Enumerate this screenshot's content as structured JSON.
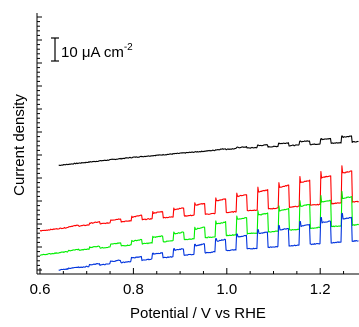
{
  "chart_data": {
    "type": "line",
    "title": "",
    "xlabel": "Potential / V vs RHE",
    "ylabel": "Current density",
    "xlim": [
      0.6,
      1.3
    ],
    "x_ticks": [
      0.6,
      0.8,
      1.0,
      1.2
    ],
    "x_tick_labels": [
      "0.6",
      "0.8",
      "1.0",
      "1.2"
    ],
    "y_scale": "arbitrary (stacked traces, no values printed)",
    "scale_bar": {
      "text": "10 μA cm",
      "superscript": "-2",
      "height_uA_cm2": 10
    },
    "light_chopping": {
      "first_pulse_V": 0.66,
      "pulse_period_V": 0.045,
      "pulse_on_fraction": 0.5
    },
    "series": [
      {
        "color": "#000000",
        "x_start": 0.64,
        "baseline": [
          [
            0.64,
            0.0
          ],
          [
            0.8,
            3.5
          ],
          [
            1.0,
            7.0
          ],
          [
            1.3,
            10.5
          ]
        ],
        "photocurrent": [
          [
            0.64,
            0.0
          ],
          [
            0.95,
            0.0
          ],
          [
            1.05,
            0.6
          ],
          [
            1.2,
            1.8
          ],
          [
            1.3,
            3.0
          ]
        ],
        "offset": 45.5
      },
      {
        "color": "#ff0000",
        "x_start": 0.6,
        "baseline": [
          [
            0.6,
            0.0
          ],
          [
            0.7,
            2.5
          ],
          [
            0.85,
            5.5
          ],
          [
            1.0,
            8.0
          ],
          [
            1.2,
            11.5
          ],
          [
            1.3,
            13.0
          ]
        ],
        "photocurrent": [
          [
            0.6,
            0.0
          ],
          [
            0.68,
            0.4
          ],
          [
            0.8,
            1.6
          ],
          [
            0.9,
            3.4
          ],
          [
            1.0,
            6.0
          ],
          [
            1.1,
            8.6
          ],
          [
            1.2,
            11.5
          ],
          [
            1.3,
            14.5
          ]
        ],
        "offset": 17.0
      },
      {
        "color": "#00ee00",
        "x_start": 0.6,
        "baseline": [
          [
            0.6,
            0.0
          ],
          [
            0.7,
            2.5
          ],
          [
            0.85,
            5.5
          ],
          [
            1.0,
            8.5
          ],
          [
            1.2,
            12.0
          ],
          [
            1.3,
            13.5
          ]
        ],
        "photocurrent": [
          [
            0.6,
            0.0
          ],
          [
            0.68,
            0.4
          ],
          [
            0.8,
            1.6
          ],
          [
            0.9,
            3.2
          ],
          [
            1.0,
            6.0
          ],
          [
            1.1,
            8.5
          ],
          [
            1.2,
            11.0
          ],
          [
            1.3,
            13.0
          ]
        ],
        "offset": 6.5
      },
      {
        "color": "#0033dd",
        "x_start": 0.64,
        "baseline": [
          [
            0.64,
            0.0
          ],
          [
            0.7,
            1.5
          ],
          [
            0.85,
            5.0
          ],
          [
            1.0,
            8.5
          ],
          [
            1.2,
            11.5
          ],
          [
            1.3,
            13.0
          ]
        ],
        "photocurrent": [
          [
            0.64,
            0.0
          ],
          [
            0.7,
            0.4
          ],
          [
            0.8,
            1.4
          ],
          [
            0.9,
            2.8
          ],
          [
            1.0,
            5.0
          ],
          [
            1.1,
            7.0
          ],
          [
            1.2,
            9.0
          ],
          [
            1.3,
            11.0
          ]
        ],
        "offset": 0.0
      }
    ]
  }
}
